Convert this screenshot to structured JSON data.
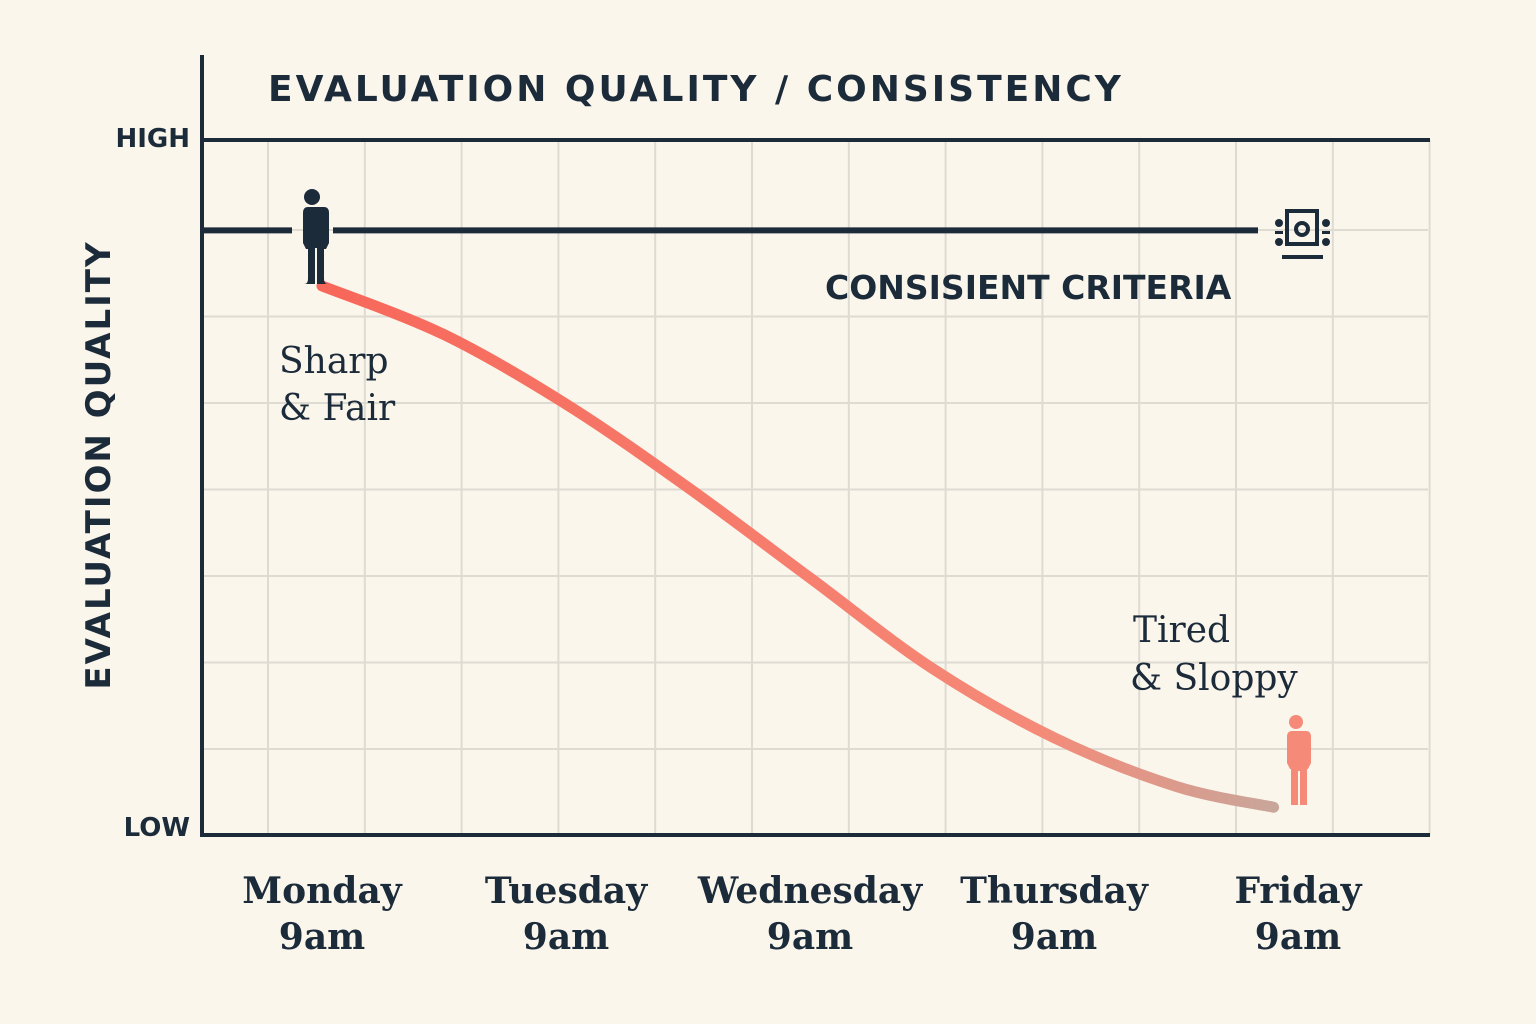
{
  "chart_data": {
    "type": "line",
    "title": "EVALUATION QUALITY / CONSISTENCY",
    "ylabel": "EVALUATION QUALITY",
    "y_tick_labels": {
      "high": "HIGH",
      "low": "LOW"
    },
    "categories": [
      "Monday\n9am",
      "Tuesday\n9am",
      "Wednesday\n9am",
      "Thursday\n9am",
      "Friday\n9am"
    ],
    "ylim": [
      0,
      100
    ],
    "grid": true,
    "series": [
      {
        "kind": "curve",
        "color": "#f7675a",
        "x": [
          0,
          0.5,
          1,
          1.5,
          2,
          2.5,
          3,
          3.5,
          3.9
        ],
        "y": [
          79,
          72,
          62,
          50,
          37,
          24,
          14,
          7,
          4
        ]
      },
      {
        "kind": "reference-line",
        "color": "#1c2b3a",
        "y": 87,
        "label": "CONSISIENT CRITERIA"
      }
    ],
    "annotations": [
      {
        "text_lines": [
          "Sharp",
          "& Fair"
        ],
        "near": "start"
      },
      {
        "text_lines": [
          "Tired",
          "& Sloppy"
        ],
        "near": "end"
      }
    ],
    "icons": [
      "person-dark-icon",
      "person-tired-icon",
      "machine-icon"
    ],
    "colors": {
      "background": "#fbf6ec",
      "axis": "#1c2b3a",
      "grid": "#dedbd2",
      "curve_start": "#f7675a",
      "curve_end": "#c9a69a",
      "tired_person": "#f58a78"
    }
  }
}
